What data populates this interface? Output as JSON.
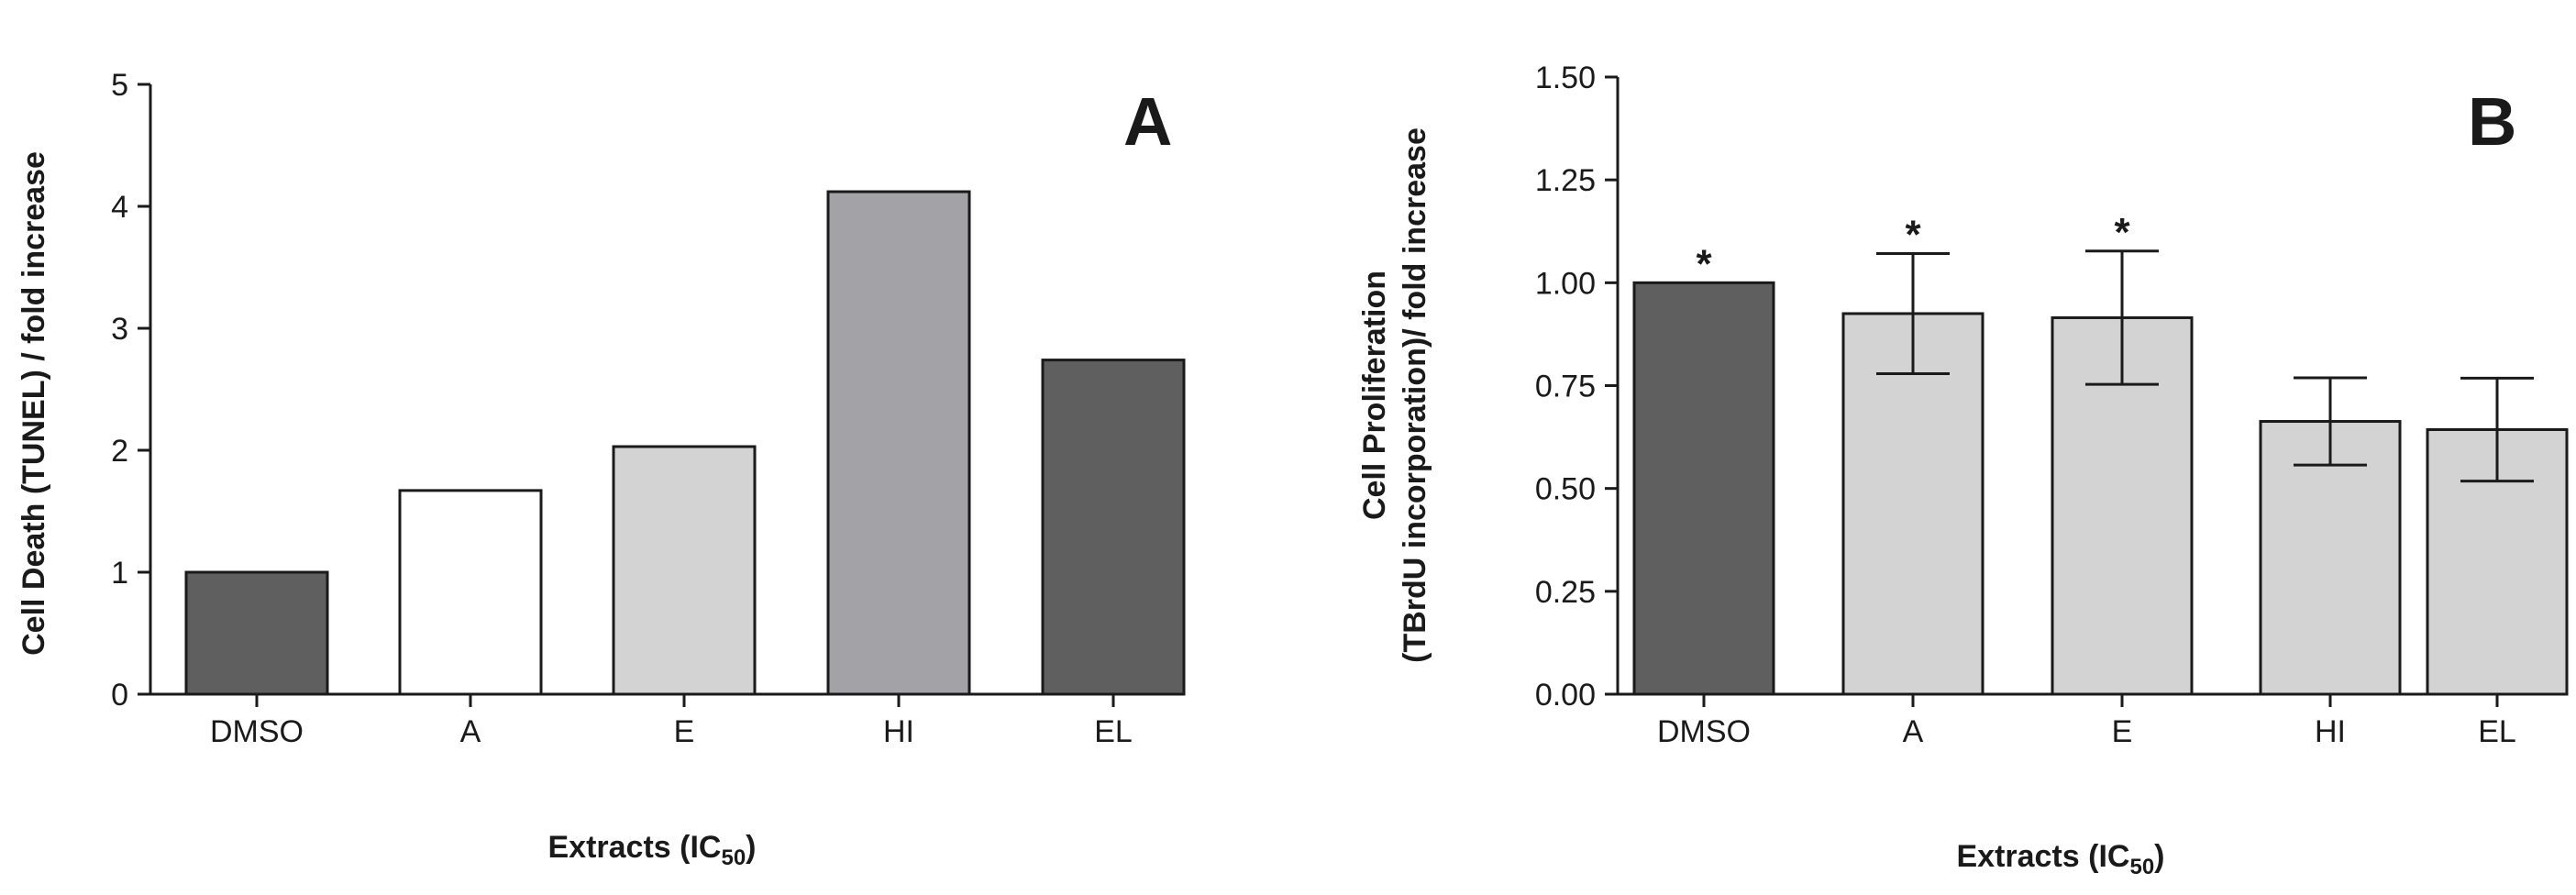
{
  "chart_data": [
    {
      "type": "bar",
      "panel": "A",
      "categories": [
        "DMSO",
        "A",
        "E",
        "HI",
        "EL"
      ],
      "values": [
        1.0,
        1.67,
        2.03,
        4.12,
        2.74
      ],
      "colors": [
        "#5f5f5f",
        "#ffffff",
        "#d3d3d3",
        "#a3a3a7",
        "#5f5f5f"
      ],
      "ylabel": "Cell Death (TUNEL) / fold increase",
      "xlabel": "Extracts (IC",
      "xlabel_sub": "50",
      "xlabel_close": ")",
      "ylim": [
        0,
        5
      ],
      "yticks": [
        "0",
        "1",
        "2",
        "3",
        "4",
        "5"
      ]
    },
    {
      "type": "bar",
      "panel": "B",
      "categories": [
        "DMSO",
        "A",
        "E",
        "HI",
        "EL"
      ],
      "values": [
        1.0,
        0.925,
        0.915,
        0.663,
        0.643
      ],
      "errors": [
        0.0,
        0.146,
        0.162,
        0.106,
        0.125
      ],
      "annotations": [
        "*",
        "*",
        "*",
        "",
        ""
      ],
      "colors": [
        "#5f5f5f",
        "#d3d3d3",
        "#d3d3d3",
        "#d3d3d3",
        "#d3d3d3"
      ],
      "ylabel": "Cell Proliferation",
      "ylabel_line2": "(TBrdU incorporation)/ fold increase",
      "xlabel": "Extracts (IC",
      "xlabel_sub": "50",
      "xlabel_close": ")",
      "ylim": [
        0,
        1.5
      ],
      "yticks": [
        "0.00",
        "0.25",
        "0.50",
        "0.75",
        "1.00",
        "1.25",
        "1.50"
      ]
    }
  ]
}
